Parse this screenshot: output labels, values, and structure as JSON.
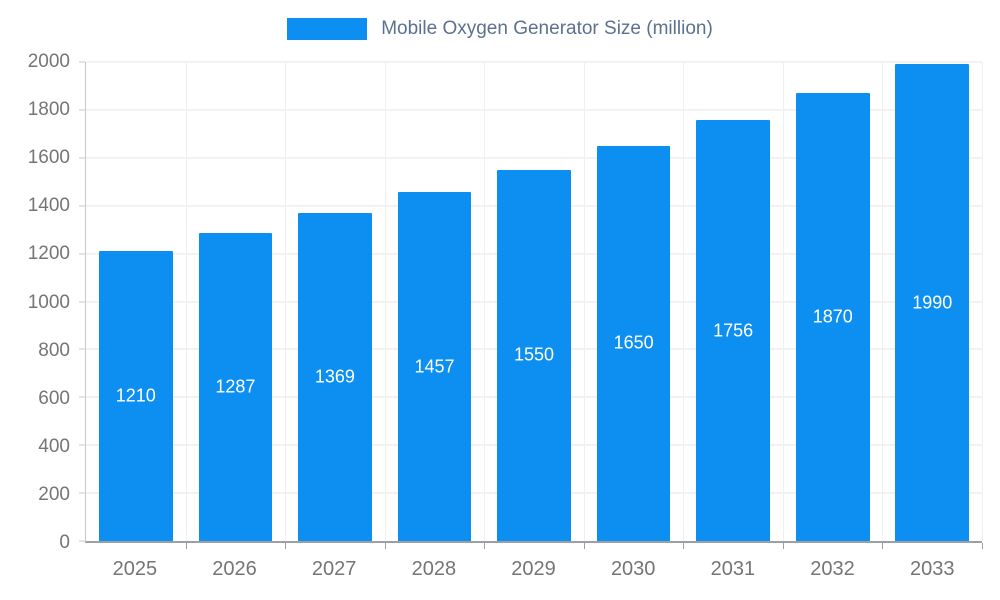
{
  "chart_data": {
    "type": "bar",
    "title": "Mobile Oxygen Generator Size (million)",
    "categories": [
      "2025",
      "2026",
      "2027",
      "2028",
      "2029",
      "2030",
      "2031",
      "2032",
      "2033"
    ],
    "values": [
      1210,
      1287,
      1369,
      1457,
      1550,
      1650,
      1756,
      1870,
      1990
    ],
    "xlabel": "",
    "ylabel": "",
    "ylim": [
      0,
      2000
    ],
    "ytick_step": 200,
    "grid": true,
    "legend_position": "top",
    "bar_color": "#0d8ff2",
    "grid_color": "#e6e6e6",
    "axis_text_color": "#757575",
    "title_color": "#5b7191",
    "value_label_color": "#ffffff"
  },
  "legend": {
    "label": "Mobile Oxygen Generator Size (million)"
  }
}
